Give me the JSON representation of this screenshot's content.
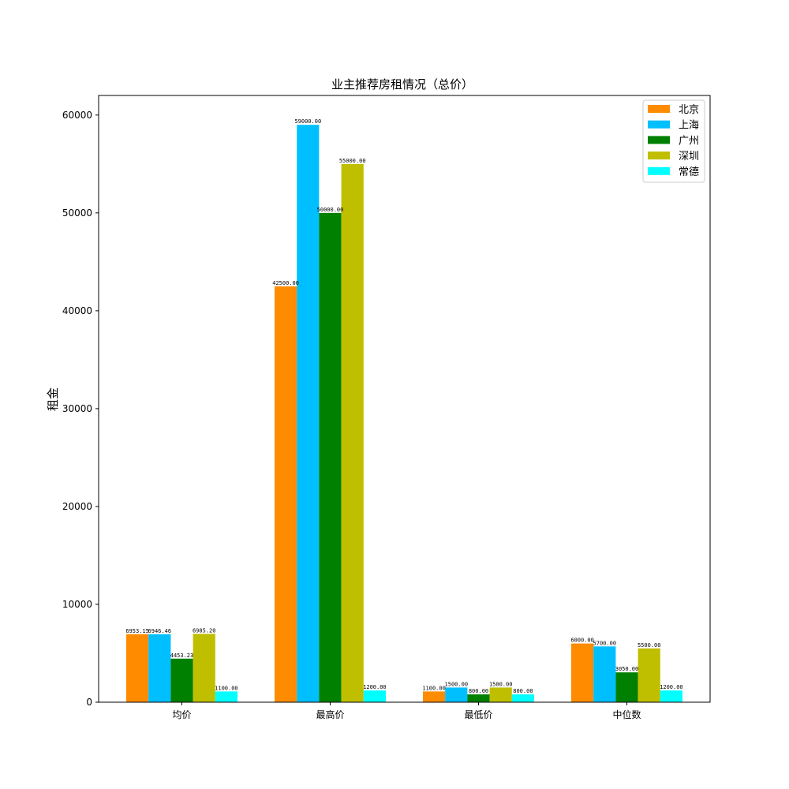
{
  "chart_data": {
    "type": "bar",
    "title": "业主推荐房租情况（总价）",
    "xlabel": "",
    "ylabel": "租金",
    "ylim": [
      0,
      62000
    ],
    "yticks": [
      0,
      10000,
      20000,
      30000,
      40000,
      50000,
      60000
    ],
    "categories": [
      "均价",
      "最高价",
      "最低价",
      "中位数"
    ],
    "series": [
      {
        "name": "北京",
        "color": "#ff8c00",
        "values": [
          6953.15,
          42500.0,
          1100.0,
          6000.0
        ],
        "labels": [
          "6953.15",
          "42500.00",
          "1100.00",
          "6000.00"
        ]
      },
      {
        "name": "上海",
        "color": "#00bfff",
        "values": [
          6946.46,
          59000.0,
          1500.0,
          5700.0
        ],
        "labels": [
          "6946.46",
          "59000.00",
          "1500.00",
          "5700.00"
        ]
      },
      {
        "name": "广州",
        "color": "#008000",
        "values": [
          4453.23,
          50000.0,
          800.0,
          3050.0
        ],
        "labels": [
          "4453.23",
          "50000.00",
          "800.00",
          "3050.00"
        ]
      },
      {
        "name": "深圳",
        "color": "#bfbf00",
        "values": [
          6985.2,
          55000.0,
          1500.0,
          5500.0
        ],
        "labels": [
          "6985.20",
          "55000.00",
          "1500.00",
          "5500.00"
        ]
      },
      {
        "name": "常德",
        "color": "#00ffff",
        "values": [
          1100.0,
          1200.0,
          800.0,
          1200.0
        ],
        "labels": [
          "1100.00",
          "1200.00",
          "800.00",
          "1200.00"
        ]
      }
    ],
    "legend": "top-right",
    "grid": false
  }
}
